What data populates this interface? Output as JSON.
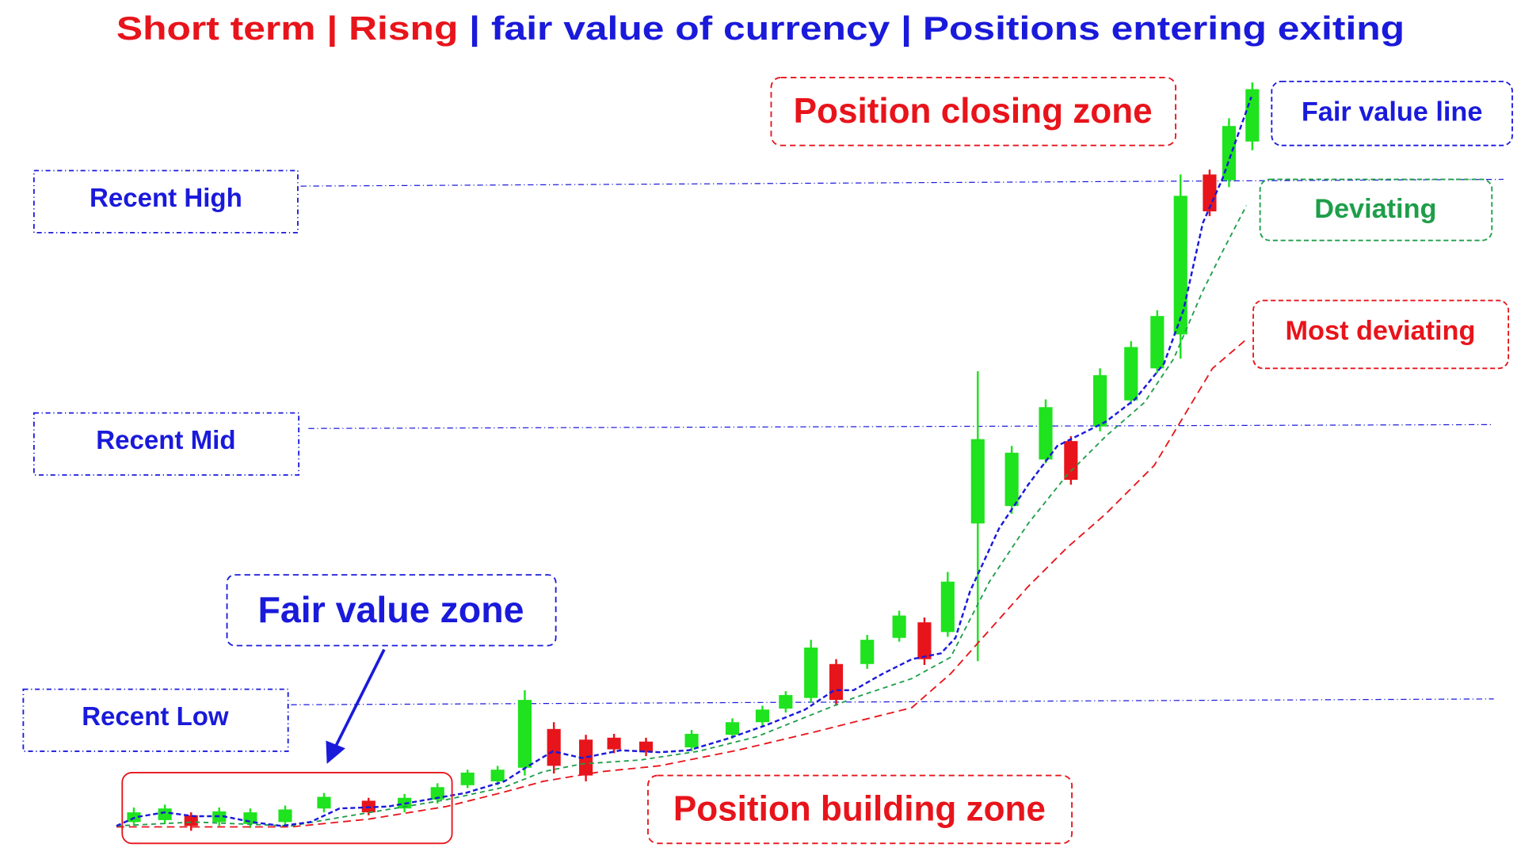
{
  "header": {
    "title_segments": [
      {
        "text": "Short term",
        "color": "#e8141b"
      },
      {
        "text": "|",
        "color": "#e8141b"
      },
      {
        "text": "Risng",
        "color": "#e8141b"
      },
      {
        "text": "|",
        "color": "#1a1adb"
      },
      {
        "text": "fair value of currency",
        "color": "#1a1adb"
      },
      {
        "text": "|",
        "color": "#1a1adb"
      },
      {
        "text": "Positions entering exiting",
        "color": "#1a1adb"
      }
    ]
  },
  "levels": {
    "high": "Recent High",
    "mid": "Recent Mid",
    "low": "Recent Low"
  },
  "labels": {
    "fair_value_zone": "Fair value zone",
    "closing_zone": "Position closing zone",
    "building_zone": "Position building zone",
    "fair_value_line": "Fair value line",
    "deviating": "Deviating",
    "most_deviating": "Most deviating"
  }
}
